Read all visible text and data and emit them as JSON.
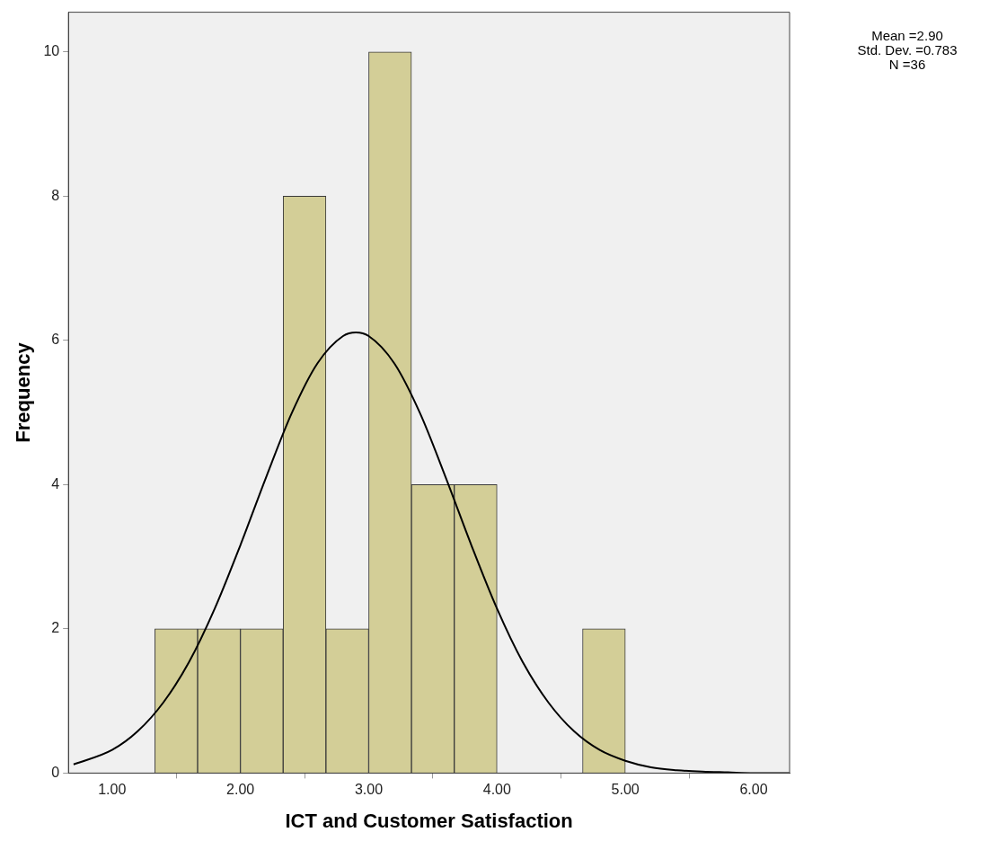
{
  "chart_data": {
    "type": "histogram",
    "xlabel": "ICT and Customer Satisfaction",
    "ylabel": "Frequency",
    "bins": [
      1.3333,
      1.6667,
      2,
      2.3333,
      2.6667,
      3,
      3.3333,
      3.6667,
      4,
      4.3333,
      4.6667,
      5
    ],
    "values": [
      2,
      2,
      2,
      8,
      2,
      10,
      4,
      4,
      0,
      0,
      2
    ],
    "color": "#d3ce97",
    "series": [
      {
        "type": "line",
        "color": "#000000",
        "x": [
          0.7,
          1.0,
          1.2,
          1.4,
          1.6,
          1.8,
          2.0,
          2.2,
          2.4,
          2.6,
          2.8,
          2.9,
          3.0,
          3.2,
          3.4,
          3.6,
          3.8,
          4.0,
          4.2,
          4.4,
          4.6,
          4.8,
          5.0,
          5.2,
          5.4,
          5.6,
          5.8,
          6.0,
          6.28
        ],
        "values": [
          0.12,
          0.32,
          0.58,
          0.98,
          1.54,
          2.28,
          3.16,
          4.1,
          4.99,
          5.68,
          6.06,
          6.11,
          6.06,
          5.68,
          4.99,
          4.1,
          3.16,
          2.28,
          1.54,
          0.98,
          0.58,
          0.32,
          0.17,
          0.08,
          0.04,
          0.02,
          0.01,
          0,
          0
        ]
      }
    ],
    "xlim": [
      0.66,
      6.28
    ],
    "xticks": [
      {
        "value": 1,
        "label": "1.00"
      },
      {
        "value": 2,
        "label": "2.00"
      },
      {
        "value": 3,
        "label": "3.00"
      },
      {
        "value": 4,
        "label": "4.00"
      },
      {
        "value": 5,
        "label": "5.00"
      },
      {
        "value": 6,
        "label": "6.00"
      }
    ],
    "ylim": [
      0,
      10.55
    ],
    "yticks": [
      0,
      2,
      4,
      6,
      8,
      10
    ],
    "grid": false,
    "legend": false,
    "annotations": [
      "Mean =2.90",
      "Std. Dev. =0.783",
      "N =36"
    ]
  }
}
